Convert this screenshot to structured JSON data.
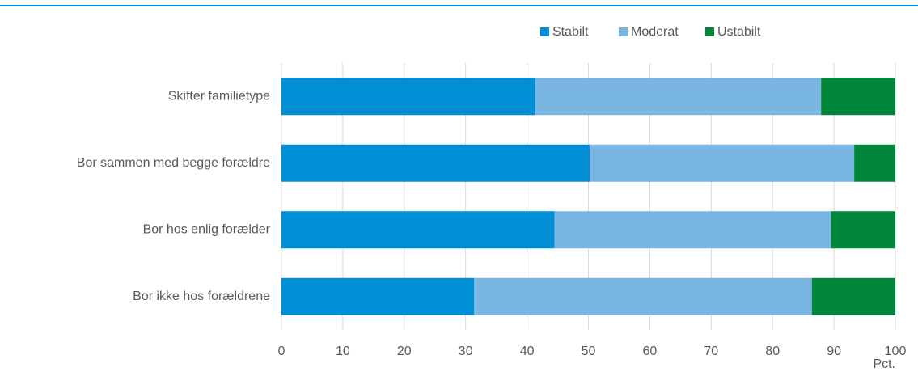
{
  "chart_data": {
    "type": "stacked_barh",
    "categories": [
      "Skifter familietype",
      "Bor sammen med begge forældre",
      "Bor hos enlig forælder",
      "Bor ikke hos forældrene"
    ],
    "series": [
      {
        "name": "Stabilt",
        "color": "#008fd5",
        "values": [
          41.4,
          50.2,
          44.5,
          31.4
        ]
      },
      {
        "name": "Moderat",
        "color": "#7ab6e2",
        "values": [
          46.5,
          43.1,
          45.0,
          55.0
        ]
      },
      {
        "name": "Ustabilt",
        "color": "#00873c",
        "values": [
          12.1,
          6.7,
          10.5,
          13.6
        ]
      }
    ],
    "xlabel": "Pct.",
    "xlim": [
      0,
      100
    ],
    "xticks": [
      0,
      10,
      20,
      30,
      40,
      50,
      60,
      70,
      80,
      90,
      100
    ],
    "grid": true,
    "legend": "top"
  }
}
